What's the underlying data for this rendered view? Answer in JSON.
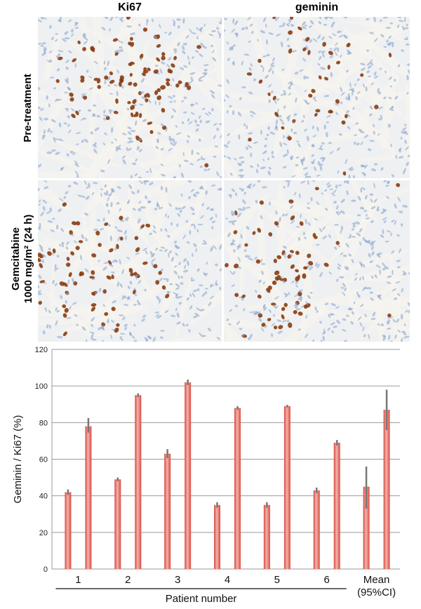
{
  "figure": {
    "column_headers": [
      "Ki67",
      "geminin"
    ],
    "row_labels": [
      {
        "lines": [
          "Pre-treatment"
        ]
      },
      {
        "lines": [
          "Gemcitabine",
          "1000 mg/m² (24 h)"
        ]
      }
    ],
    "panels": [
      {
        "row": 0,
        "col": 0,
        "stain": "Ki67",
        "nuclei_fraction": 0.55
      },
      {
        "row": 0,
        "col": 1,
        "stain": "geminin",
        "nuclei_fraction": 0.25
      },
      {
        "row": 1,
        "col": 0,
        "stain": "Ki67",
        "nuclei_fraction": 0.5
      },
      {
        "row": 1,
        "col": 1,
        "stain": "geminin",
        "nuclei_fraction": 0.45
      }
    ],
    "colors": {
      "background_tissue": "#eef0f2",
      "hematoxylin_blue": "#8fa9cf",
      "dab_brown": "#8a3c10",
      "bar_red": "#d9493f",
      "bar_light": "#f4b3ad",
      "error_bar": "#777777",
      "grid": "#9a9a9a"
    }
  },
  "chart_data": {
    "type": "bar",
    "categories": [
      "1",
      "2",
      "3",
      "4",
      "5",
      "6",
      "Mean\n(95%CI)"
    ],
    "xlabel": "Patient number",
    "ylabel": "Geminin / Ki67 (%)",
    "ylim": [
      0,
      120
    ],
    "yticks": [
      0,
      20,
      40,
      60,
      80,
      100,
      120
    ],
    "grid": true,
    "series": [
      {
        "values": [
          42,
          49,
          63,
          35,
          35,
          43,
          45
        ],
        "err_low": [
          1.5,
          1,
          2.5,
          1.5,
          1.5,
          1.5,
          12
        ],
        "err_high": [
          1.5,
          1,
          2.5,
          1.5,
          1.5,
          1.5,
          11
        ]
      },
      {
        "values": [
          78,
          95,
          102,
          88,
          89,
          69,
          87
        ],
        "err_low": [
          3.5,
          1,
          1.5,
          1,
          0.7,
          1.5,
          11
        ],
        "err_high": [
          4.5,
          1,
          1.5,
          1,
          0.7,
          1.5,
          11
        ]
      }
    ]
  }
}
